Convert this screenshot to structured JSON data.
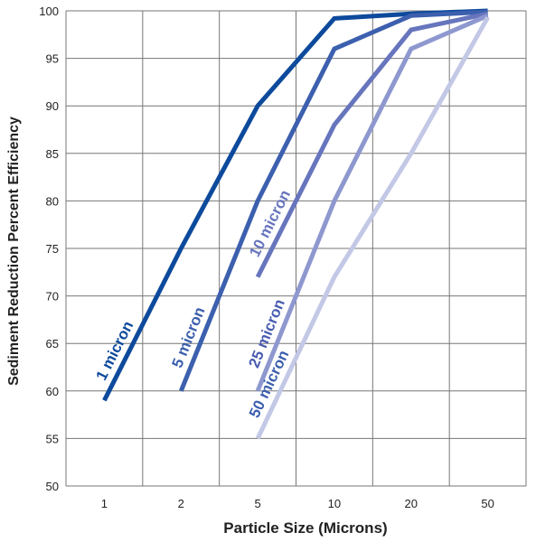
{
  "chart_data": {
    "type": "line",
    "xlabel": "Particle Size (Microns)",
    "ylabel": "Sediment Reduction Percent Efficiency",
    "categories": [
      "1",
      "2",
      "5",
      "10",
      "20",
      "50"
    ],
    "ylim": [
      50,
      100
    ],
    "yticks": [
      "50",
      "55",
      "60",
      "65",
      "70",
      "75",
      "80",
      "85",
      "90",
      "95",
      "100"
    ],
    "grid": true,
    "series": [
      {
        "name": "1 micron",
        "color": "#0d4a9c",
        "points": [
          [
            0,
            59
          ],
          [
            1,
            75
          ],
          [
            2,
            90
          ],
          [
            3,
            99.2
          ],
          [
            4,
            99.7
          ],
          [
            5,
            100
          ]
        ]
      },
      {
        "name": "5 micron",
        "color": "#3c5fae",
        "points": [
          [
            1,
            60
          ],
          [
            2,
            80
          ],
          [
            3,
            96
          ],
          [
            4,
            99.5
          ],
          [
            5,
            99.9
          ]
        ]
      },
      {
        "name": "10 micron",
        "color": "#6775bd",
        "points": [
          [
            2,
            72
          ],
          [
            3,
            88
          ],
          [
            4,
            98
          ],
          [
            5,
            99.7
          ]
        ]
      },
      {
        "name": "25 micron",
        "color": "#8e98cf",
        "points": [
          [
            2,
            60
          ],
          [
            3,
            80
          ],
          [
            4,
            96
          ],
          [
            5,
            99.5
          ]
        ]
      },
      {
        "name": "50 micron",
        "color": "#c3c8e6",
        "points": [
          [
            2,
            55
          ],
          [
            3,
            72
          ],
          [
            4,
            85
          ],
          [
            5,
            99.3
          ]
        ]
      }
    ]
  }
}
